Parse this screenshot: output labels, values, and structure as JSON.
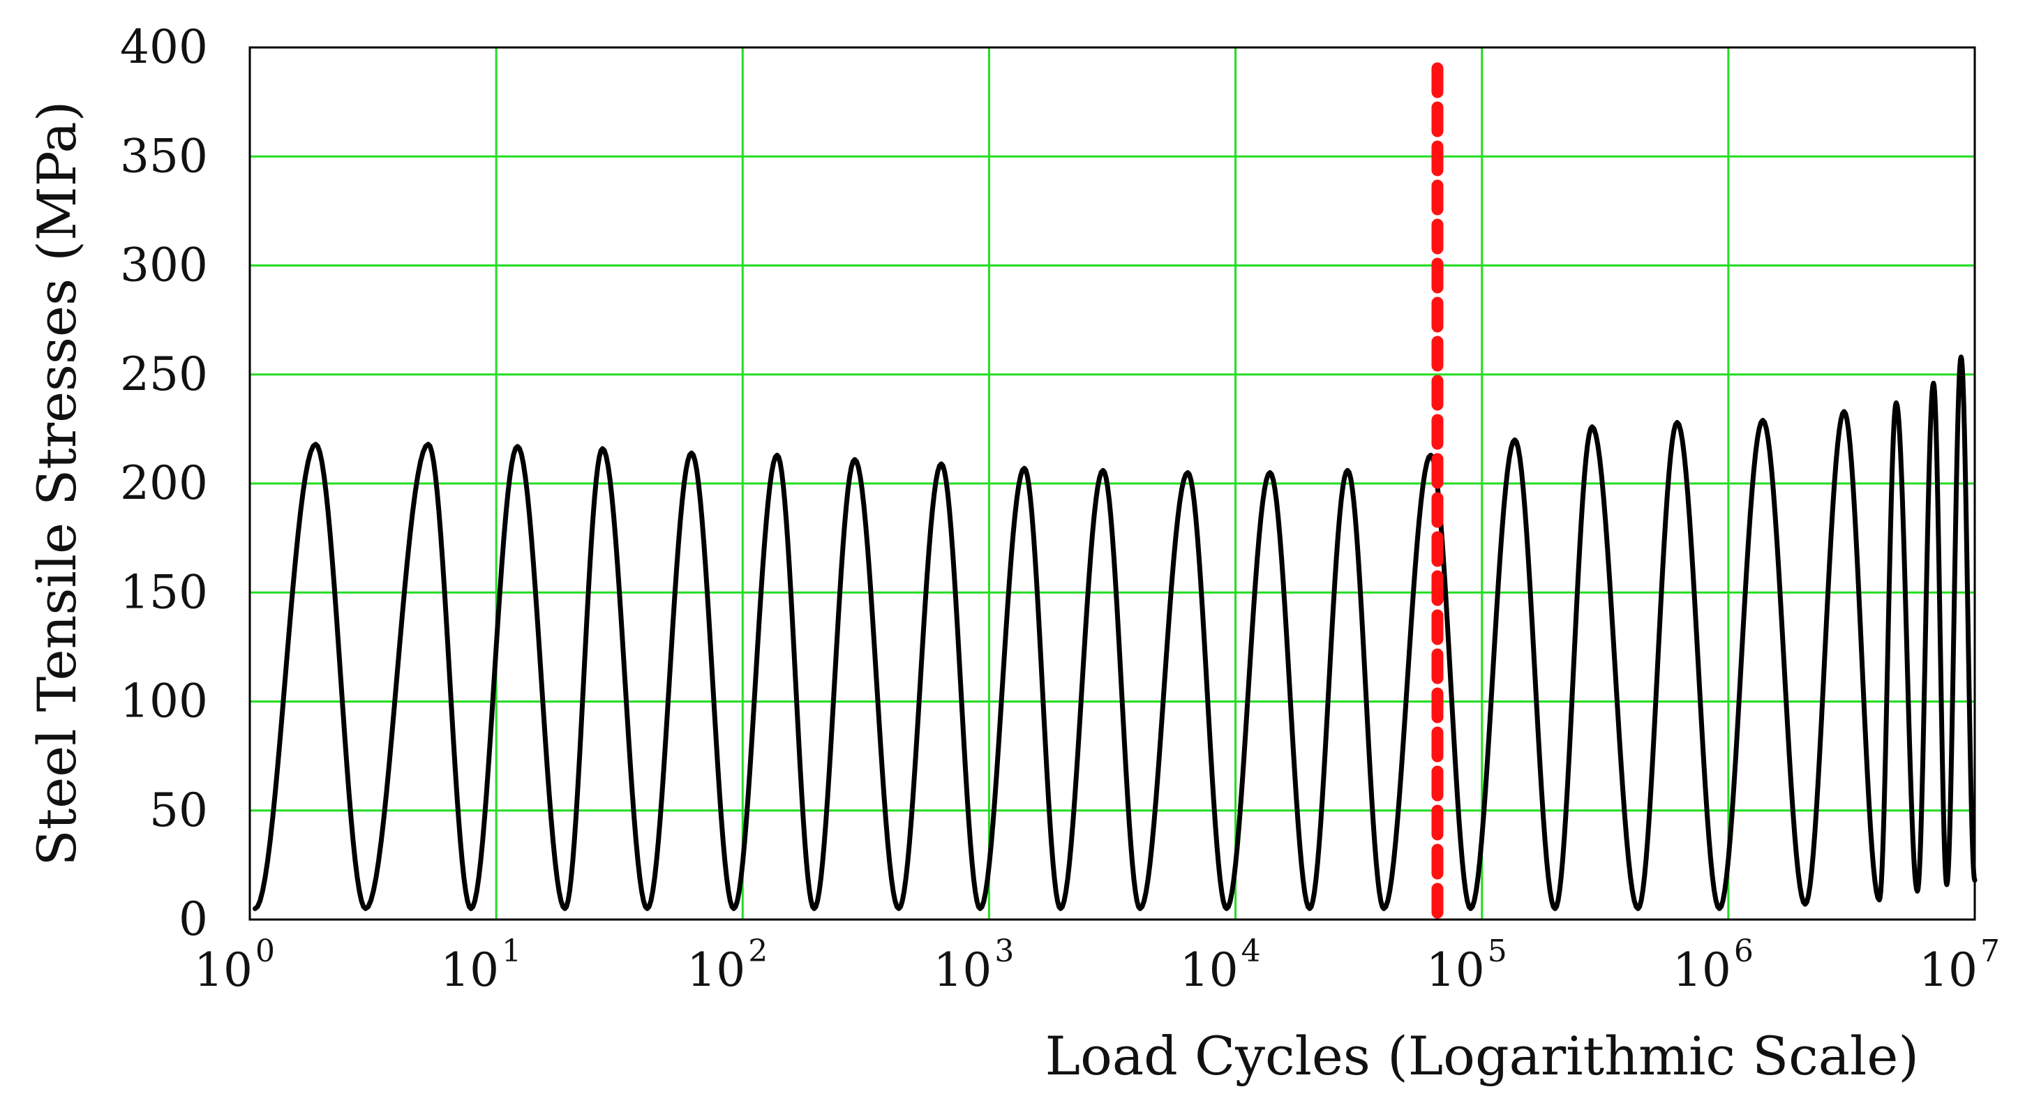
{
  "chart_data": {
    "type": "line",
    "title": "",
    "xlabel": "Load Cycles (Logarithmic Scale)",
    "ylabel": "Steel Tensile Stresses (MPa)",
    "x_scale": "log",
    "xlim": [
      1,
      10000000
    ],
    "ylim": [
      0,
      400
    ],
    "grid": true,
    "legend": "none",
    "x_ticks": [
      {
        "base": "10",
        "exp": "0",
        "value": 1
      },
      {
        "base": "10",
        "exp": "1",
        "value": 10
      },
      {
        "base": "10",
        "exp": "2",
        "value": 100
      },
      {
        "base": "10",
        "exp": "3",
        "value": 1000
      },
      {
        "base": "10",
        "exp": "4",
        "value": 10000
      },
      {
        "base": "10",
        "exp": "5",
        "value": 100000
      },
      {
        "base": "10",
        "exp": "6",
        "value": 1000000
      },
      {
        "base": "10",
        "exp": "7",
        "value": 10000000
      }
    ],
    "y_ticks": [
      "0",
      "50",
      "100",
      "150",
      "200",
      "250",
      "300",
      "350",
      "400"
    ],
    "colors": {
      "grid": "#22dd22",
      "frame": "#000000",
      "series": "#000000",
      "marker": "#ff1111"
    },
    "series": [
      {
        "kind": "stress-oscillation",
        "peaks": [
          {
            "x": 1.85,
            "y": 218
          },
          {
            "x": 5.3,
            "y": 218
          },
          {
            "x": 12.2,
            "y": 217
          },
          {
            "x": 27,
            "y": 216
          },
          {
            "x": 62,
            "y": 214
          },
          {
            "x": 138,
            "y": 213
          },
          {
            "x": 285,
            "y": 211
          },
          {
            "x": 640,
            "y": 209
          },
          {
            "x": 1390,
            "y": 207
          },
          {
            "x": 2900,
            "y": 206
          },
          {
            "x": 6400,
            "y": 205
          },
          {
            "x": 13800,
            "y": 205
          },
          {
            "x": 28500,
            "y": 206
          },
          {
            "x": 62000,
            "y": 213
          },
          {
            "x": 136000,
            "y": 220
          },
          {
            "x": 280000,
            "y": 226
          },
          {
            "x": 620000,
            "y": 228
          },
          {
            "x": 1380000,
            "y": 229
          },
          {
            "x": 2950000,
            "y": 233
          },
          {
            "x": 4800000,
            "y": 237
          },
          {
            "x": 6800000,
            "y": 246
          },
          {
            "x": 8800000,
            "y": 258
          }
        ],
        "valleys": [
          {
            "x": 1.05,
            "y": 5
          },
          {
            "x": 2.95,
            "y": 5
          },
          {
            "x": 7.9,
            "y": 5
          },
          {
            "x": 19,
            "y": 5
          },
          {
            "x": 41,
            "y": 5
          },
          {
            "x": 92,
            "y": 5
          },
          {
            "x": 195,
            "y": 5
          },
          {
            "x": 430,
            "y": 5
          },
          {
            "x": 920,
            "y": 5
          },
          {
            "x": 1950,
            "y": 5
          },
          {
            "x": 4100,
            "y": 5
          },
          {
            "x": 9200,
            "y": 5
          },
          {
            "x": 20000,
            "y": 5
          },
          {
            "x": 40000,
            "y": 5
          },
          {
            "x": 90000,
            "y": 5
          },
          {
            "x": 198000,
            "y": 5
          },
          {
            "x": 430000,
            "y": 5
          },
          {
            "x": 920000,
            "y": 5
          },
          {
            "x": 2050000,
            "y": 7
          },
          {
            "x": 4100000,
            "y": 9
          },
          {
            "x": 5850000,
            "y": 13
          },
          {
            "x": 7700000,
            "y": 16
          },
          {
            "x": 10000000,
            "y": 18
          }
        ]
      }
    ],
    "vertical_marker": {
      "x": 66000,
      "style": "dashed"
    }
  }
}
